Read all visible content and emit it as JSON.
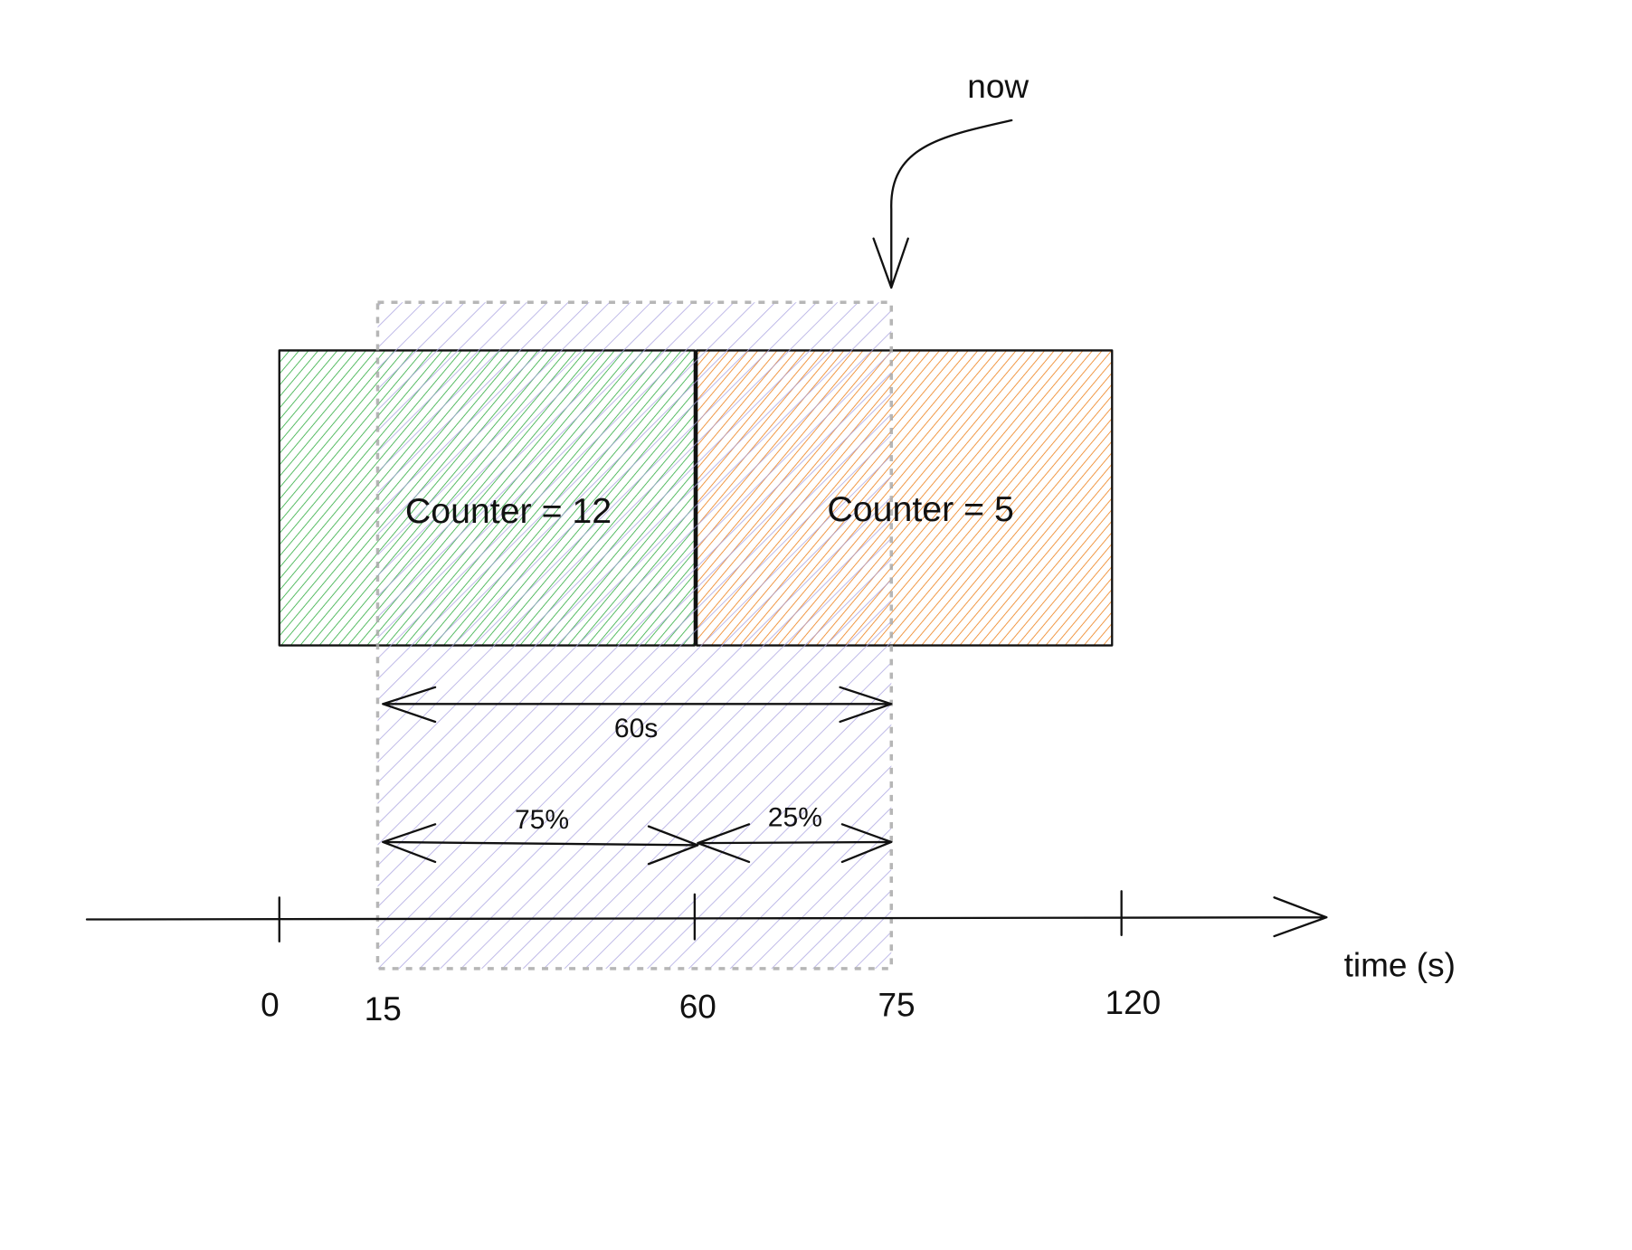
{
  "annotation": {
    "now": "now"
  },
  "windows": [
    {
      "label": "Counter = 12"
    },
    {
      "label": "Counter = 5"
    }
  ],
  "spans": {
    "total": "60s",
    "previous_share": "75%",
    "current_share": "25%"
  },
  "axis": {
    "label": "time (s)",
    "ticks": [
      "0",
      "15",
      "60",
      "75",
      "120"
    ]
  }
}
